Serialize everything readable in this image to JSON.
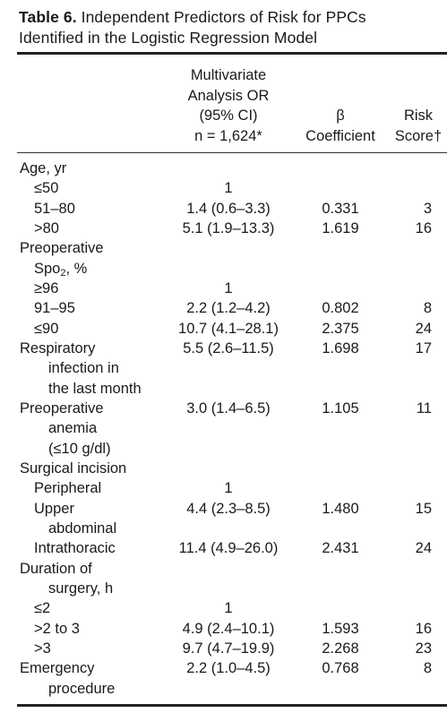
{
  "caption": {
    "label": "Table 6.",
    "text_line1": " Independent Predictors of Risk for PPCs",
    "text_line2": "Identified in the Logistic Regression Model"
  },
  "header": {
    "or_line1": "Multivariate",
    "or_line2": "Analysis OR",
    "or_line3": "(95% CI)",
    "or_line4": "n = 1,624*",
    "beta_line1": "β",
    "beta_line2": "Coefficient",
    "risk_line1": "Risk",
    "risk_line2": "Score†"
  },
  "rows": [
    {
      "label": "Age, yr",
      "indent": 0,
      "or": "",
      "beta": "",
      "risk": ""
    },
    {
      "label": "≤50",
      "indent": 1,
      "or": "1",
      "beta": "",
      "risk": ""
    },
    {
      "label": "51–80",
      "indent": 1,
      "or": "1.4 (0.6–3.3)",
      "beta": "0.331",
      "risk": "3"
    },
    {
      "label": ">80",
      "indent": 1,
      "or": "5.1 (1.9–13.3)",
      "beta": "1.619",
      "risk": "16"
    },
    {
      "label": "Preoperative",
      "indent": 0,
      "or": "",
      "beta": "",
      "risk": ""
    },
    {
      "label": "Spo",
      "label_sub": "2",
      "label_after": ", %",
      "indent": 1,
      "or": "",
      "beta": "",
      "risk": ""
    },
    {
      "label": "≥96",
      "indent": 1,
      "or": "1",
      "beta": "",
      "risk": ""
    },
    {
      "label": "91–95",
      "indent": 1,
      "or": "2.2 (1.2–4.2)",
      "beta": "0.802",
      "risk": "8"
    },
    {
      "label": "≤90",
      "indent": 1,
      "or": "10.7 (4.1–28.1)",
      "beta": "2.375",
      "risk": "24"
    },
    {
      "label": "Respiratory",
      "indent": 0,
      "or": "5.5 (2.6–11.5)",
      "beta": "1.698",
      "risk": "17"
    },
    {
      "label": "infection in",
      "indent": 2,
      "or": "",
      "beta": "",
      "risk": ""
    },
    {
      "label": "the last month",
      "indent": 2,
      "or": "",
      "beta": "",
      "risk": ""
    },
    {
      "label": "Preoperative",
      "indent": 0,
      "or": "3.0 (1.4–6.5)",
      "beta": "1.105",
      "risk": "11"
    },
    {
      "label": "anemia",
      "indent": 2,
      "or": "",
      "beta": "",
      "risk": ""
    },
    {
      "label": "(≤10 g/dl)",
      "indent": 2,
      "or": "",
      "beta": "",
      "risk": ""
    },
    {
      "label": "Surgical incision",
      "indent": 0,
      "or": "",
      "beta": "",
      "risk": ""
    },
    {
      "label": "Peripheral",
      "indent": 1,
      "or": "1",
      "beta": "",
      "risk": ""
    },
    {
      "label": "Upper",
      "indent": 1,
      "or": "4.4 (2.3–8.5)",
      "beta": "1.480",
      "risk": "15"
    },
    {
      "label": "abdominal",
      "indent": 2,
      "or": "",
      "beta": "",
      "risk": ""
    },
    {
      "label": "Intrathoracic",
      "indent": 1,
      "or": "11.4 (4.9–26.0)",
      "beta": "2.431",
      "risk": "24"
    },
    {
      "label": "Duration of",
      "indent": 0,
      "or": "",
      "beta": "",
      "risk": ""
    },
    {
      "label": "surgery, h",
      "indent": 2,
      "or": "",
      "beta": "",
      "risk": ""
    },
    {
      "label": "≤2",
      "indent": 1,
      "or": "1",
      "beta": "",
      "risk": ""
    },
    {
      "label": ">2 to 3",
      "indent": 1,
      "or": "4.9 (2.4–10.1)",
      "beta": "1.593",
      "risk": "16"
    },
    {
      "label": ">3",
      "indent": 1,
      "or": "9.7 (4.7–19.9)",
      "beta": "2.268",
      "risk": "23"
    },
    {
      "label": "Emergency",
      "indent": 0,
      "or": "2.2 (1.0–4.5)",
      "beta": "0.768",
      "risk": "8"
    },
    {
      "label": "procedure",
      "indent": 2,
      "or": "",
      "beta": "",
      "risk": ""
    }
  ]
}
